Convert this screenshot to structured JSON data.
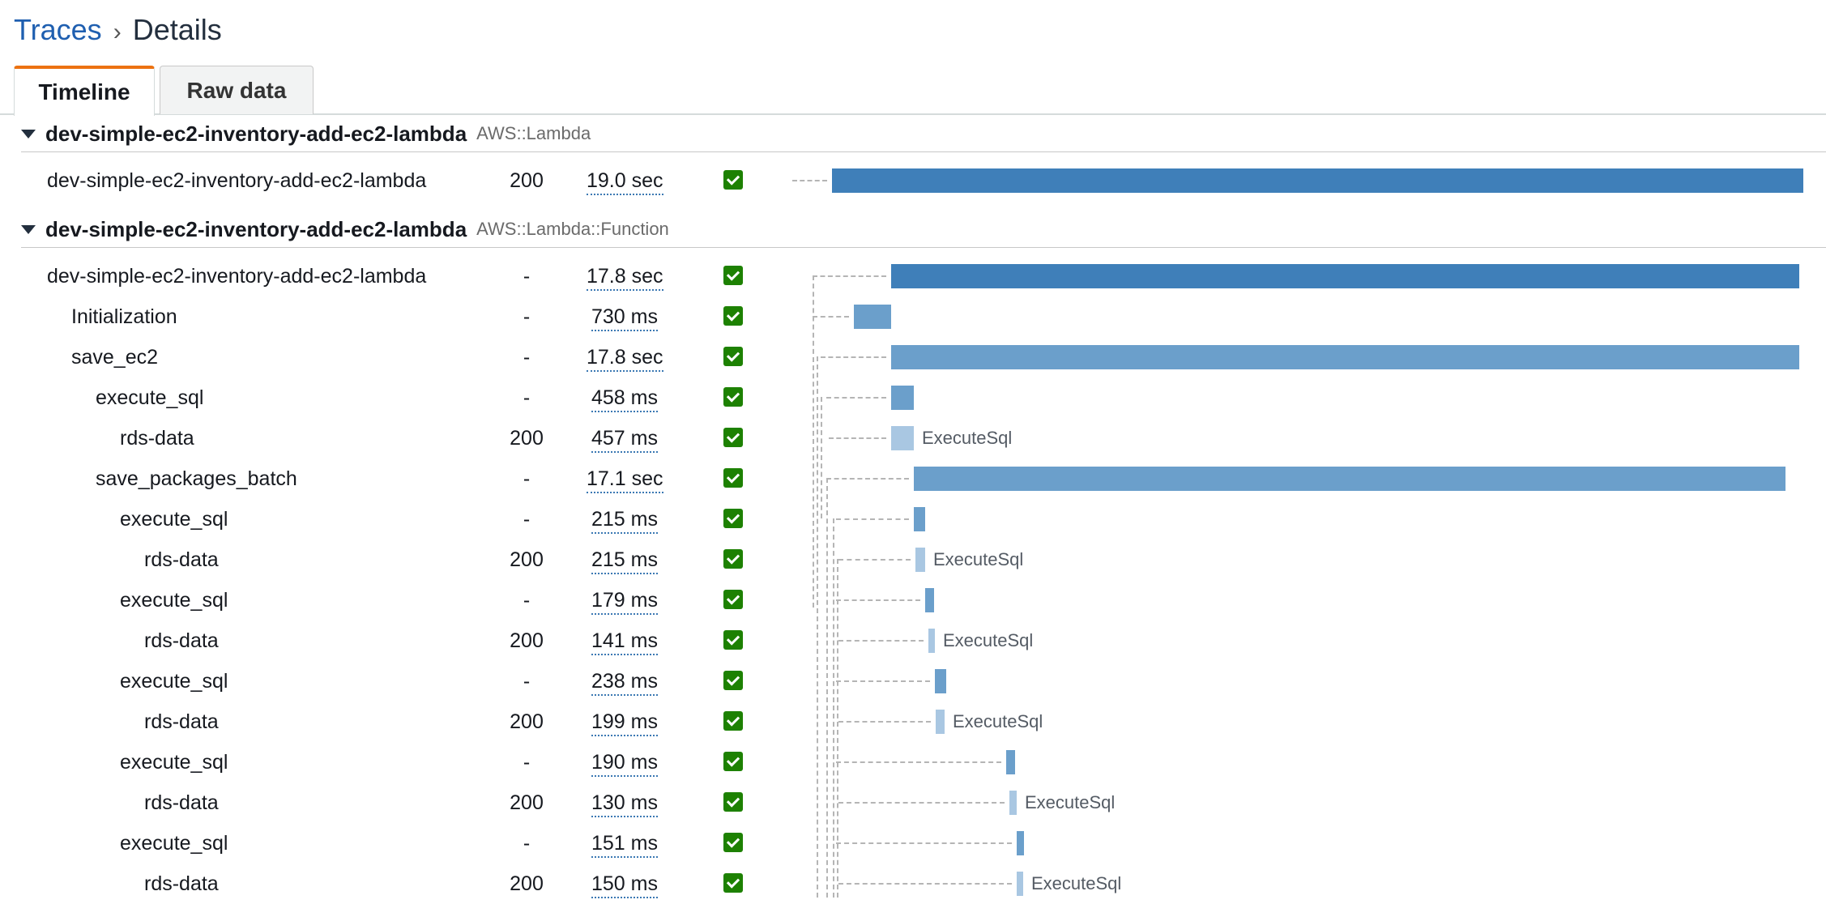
{
  "breadcrumb": {
    "root": "Traces",
    "separator": "›",
    "current": "Details"
  },
  "tabs": [
    {
      "label": "Timeline",
      "active": true
    },
    {
      "label": "Raw data",
      "active": false
    }
  ],
  "groups": [
    {
      "name": "dev-simple-ec2-inventory-add-ec2-lambda",
      "type": "AWS::Lambda",
      "rows": [
        {
          "name": "dev-simple-ec2-inventory-add-ec2-lambda",
          "response": "200",
          "duration": "19.0 sec",
          "status": "ok"
        }
      ]
    },
    {
      "name": "dev-simple-ec2-inventory-add-ec2-lambda",
      "type": "AWS::Lambda::Function",
      "rows": [
        {
          "name": "dev-simple-ec2-inventory-add-ec2-lambda",
          "response": "-",
          "duration": "17.8 sec",
          "status": "ok"
        },
        {
          "name": "Initialization",
          "response": "-",
          "duration": "730 ms",
          "status": "ok"
        },
        {
          "name": "save_ec2",
          "response": "-",
          "duration": "17.8 sec",
          "status": "ok"
        },
        {
          "name": "execute_sql",
          "response": "-",
          "duration": "458 ms",
          "status": "ok"
        },
        {
          "name": "rds-data",
          "response": "200",
          "duration": "457 ms",
          "status": "ok",
          "bar_label": "ExecuteSql"
        },
        {
          "name": "save_packages_batch",
          "response": "-",
          "duration": "17.1 sec",
          "status": "ok"
        },
        {
          "name": "execute_sql",
          "response": "-",
          "duration": "215 ms",
          "status": "ok"
        },
        {
          "name": "rds-data",
          "response": "200",
          "duration": "215 ms",
          "status": "ok",
          "bar_label": "ExecuteSql"
        },
        {
          "name": "execute_sql",
          "response": "-",
          "duration": "179 ms",
          "status": "ok"
        },
        {
          "name": "rds-data",
          "response": "200",
          "duration": "141 ms",
          "status": "ok",
          "bar_label": "ExecuteSql"
        },
        {
          "name": "execute_sql",
          "response": "-",
          "duration": "238 ms",
          "status": "ok"
        },
        {
          "name": "rds-data",
          "response": "200",
          "duration": "199 ms",
          "status": "ok",
          "bar_label": "ExecuteSql"
        },
        {
          "name": "execute_sql",
          "response": "-",
          "duration": "190 ms",
          "status": "ok"
        },
        {
          "name": "rds-data",
          "response": "200",
          "duration": "130 ms",
          "status": "ok",
          "bar_label": "ExecuteSql"
        },
        {
          "name": "execute_sql",
          "response": "-",
          "duration": "151 ms",
          "status": "ok"
        },
        {
          "name": "rds-data",
          "response": "200",
          "duration": "150 ms",
          "status": "ok",
          "bar_label": "ExecuteSql"
        }
      ]
    }
  ],
  "colors": {
    "link": "#1f5fb0",
    "tab_accent": "#ec7211",
    "status_ok": "#1d8102",
    "bar_dark": "#3f7fb9",
    "bar_mid": "#6b9fcb",
    "bar_light": "#a9c7e2"
  }
}
